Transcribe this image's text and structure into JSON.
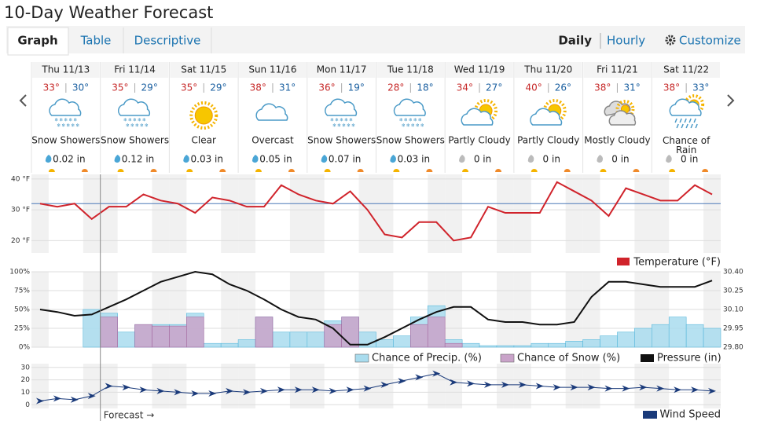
{
  "header": {
    "title": "10-Day Weather Forecast"
  },
  "tabs": [
    "Graph",
    "Table",
    "Descriptive"
  ],
  "view_links": {
    "active": "Daily",
    "other": "Hourly",
    "customize": "Customize"
  },
  "days": [
    {
      "date": "Thu 11/13",
      "high": "33°",
      "low": "30°",
      "condition": "Snow Showers",
      "precip": "0.02 in"
    },
    {
      "date": "Fri 11/14",
      "high": "35°",
      "low": "29°",
      "condition": "Snow Showers",
      "precip": "0.12 in"
    },
    {
      "date": "Sat 11/15",
      "high": "35°",
      "low": "29°",
      "condition": "Clear",
      "precip": "0.03 in"
    },
    {
      "date": "Sun 11/16",
      "high": "38°",
      "low": "31°",
      "condition": "Overcast",
      "precip": "0.05 in"
    },
    {
      "date": "Mon 11/17",
      "high": "36°",
      "low": "19°",
      "condition": "Snow Showers",
      "precip": "0.07 in"
    },
    {
      "date": "Tue 11/18",
      "high": "28°",
      "low": "18°",
      "condition": "Snow Showers",
      "precip": "0.03 in"
    },
    {
      "date": "Wed 11/19",
      "high": "34°",
      "low": "27°",
      "condition": "Partly Cloudy",
      "precip": "0 in"
    },
    {
      "date": "Thu 11/20",
      "high": "40°",
      "low": "26°",
      "condition": "Partly Cloudy",
      "precip": "0 in"
    },
    {
      "date": "Fri 11/21",
      "high": "38°",
      "low": "31°",
      "condition": "Mostly Cloudy",
      "precip": "0 in"
    },
    {
      "date": "Sat 11/22",
      "high": "38°",
      "low": "33°",
      "condition": "Chance of Rain",
      "precip": "0 in"
    }
  ],
  "forecast_marker": "Forecast →",
  "chart_data": [
    {
      "type": "line",
      "ylim": [
        16,
        41.5
      ],
      "yticks": [
        {
          "value": 40,
          "label": "40 °F"
        },
        {
          "value": 30,
          "label": "30 °F"
        },
        {
          "value": 20,
          "label": "20 °F"
        }
      ],
      "freezing_line": 32,
      "freezing_color": "#4a78b8",
      "series": [
        {
          "name": "Temperature (°F)",
          "color": "#d0232b",
          "values": [
            32,
            31,
            32,
            27,
            31,
            31,
            35,
            33,
            32,
            29,
            34,
            33,
            31,
            31,
            38,
            35,
            33,
            32,
            36,
            30,
            22,
            21,
            26,
            26,
            20,
            21,
            31,
            29,
            29,
            29,
            39,
            36,
            33,
            28,
            37,
            35,
            33,
            33,
            38,
            35
          ]
        }
      ]
    },
    {
      "type": "bar",
      "ylim": [
        0,
        100
      ],
      "yticks": [
        {
          "value": 100,
          "label": "100%"
        },
        {
          "value": 75,
          "label": "75%"
        },
        {
          "value": 50,
          "label": "50%"
        },
        {
          "value": 25,
          "label": "25%"
        },
        {
          "value": 0,
          "label": "0%"
        }
      ],
      "y2lim": [
        29.8,
        30.4
      ],
      "y2ticks": [
        {
          "value": 30.4,
          "label": "30.40"
        },
        {
          "value": 30.25,
          "label": "30.25"
        },
        {
          "value": 30.1,
          "label": "30.10"
        },
        {
          "value": 29.95,
          "label": "29.95"
        },
        {
          "value": 29.8,
          "label": "29.80"
        }
      ],
      "series": [
        {
          "name": "Chance of Precip. (%)",
          "color": "#a9dcee",
          "values": [
            0,
            0,
            0,
            50,
            45,
            20,
            30,
            30,
            30,
            45,
            5,
            5,
            10,
            40,
            20,
            20,
            20,
            35,
            40,
            20,
            10,
            15,
            40,
            55,
            10,
            5,
            2,
            2,
            2,
            5,
            5,
            8,
            10,
            15,
            20,
            25,
            30,
            40,
            30,
            25
          ]
        },
        {
          "name": "Chance of Snow (%)",
          "color": "#c9a3c9",
          "values": [
            0,
            0,
            0,
            0,
            40,
            0,
            30,
            28,
            28,
            40,
            0,
            0,
            0,
            40,
            0,
            0,
            0,
            30,
            40,
            0,
            0,
            0,
            30,
            40,
            5,
            0,
            0,
            0,
            0,
            0,
            0,
            0,
            0,
            0,
            0,
            0,
            0,
            0,
            0,
            0
          ]
        },
        {
          "name": "Pressure (in)",
          "color": "#111111",
          "axis": "y2",
          "values": [
            30.1,
            30.08,
            30.05,
            30.06,
            30.12,
            30.18,
            30.25,
            30.32,
            30.36,
            30.4,
            30.38,
            30.3,
            30.25,
            30.18,
            30.1,
            30.04,
            30.02,
            29.95,
            29.82,
            29.82,
            29.88,
            29.95,
            30.02,
            30.08,
            30.12,
            30.12,
            30.02,
            30.0,
            30.0,
            29.98,
            29.98,
            30.0,
            30.2,
            30.32,
            30.32,
            30.3,
            30.28,
            30.28,
            30.28,
            30.33
          ]
        }
      ]
    },
    {
      "type": "line",
      "ylim": [
        -3,
        33
      ],
      "yticks": [
        0,
        10,
        20,
        30
      ],
      "series": [
        {
          "name": "Wind Speed",
          "color": "#1a3a7a",
          "values": [
            3,
            5,
            4,
            7,
            15,
            14,
            12,
            11,
            10,
            9,
            9,
            11,
            10,
            11,
            12,
            12,
            12,
            11,
            12,
            13,
            16,
            19,
            22,
            25,
            18,
            17,
            16,
            16,
            16,
            15,
            14,
            14,
            14,
            13,
            13,
            14,
            13,
            12,
            12,
            11
          ]
        }
      ]
    }
  ]
}
